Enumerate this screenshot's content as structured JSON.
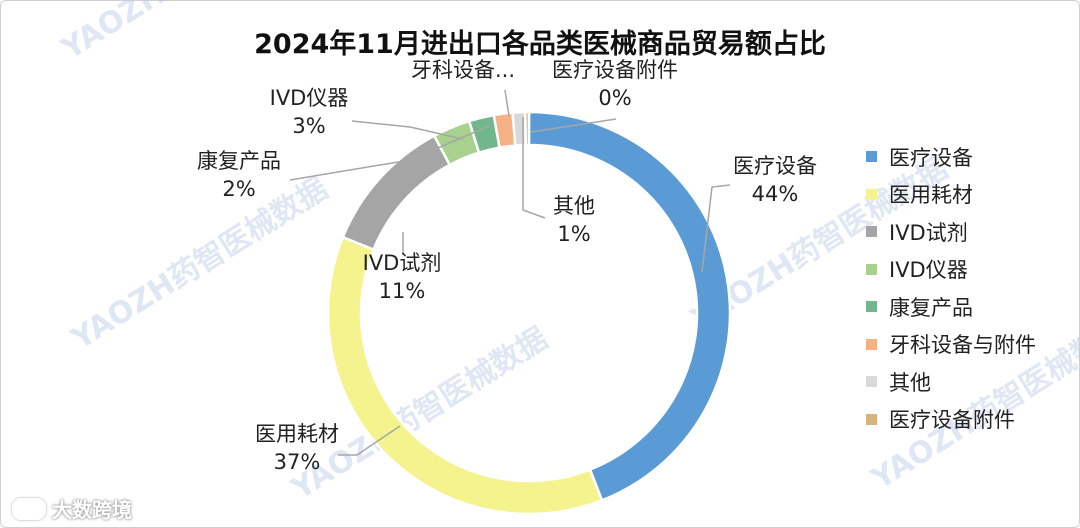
{
  "chart_data": {
    "type": "pie",
    "donut": true,
    "title": "2024年11月进出口各品类医械商品贸易额占比",
    "slices": [
      {
        "name": "医疗设备",
        "value": 44,
        "label": "医疗设备",
        "pct_label": "44%",
        "color": "#5b9bd5"
      },
      {
        "name": "医用耗材",
        "value": 37,
        "label": "医用耗材",
        "pct_label": "37%",
        "color": "#f4f38e"
      },
      {
        "name": "IVD试剂",
        "value": 11,
        "label": "IVD试剂",
        "pct_label": "11%",
        "color": "#a5a5a5"
      },
      {
        "name": "IVD仪器",
        "value": 3,
        "label": "IVD仪器",
        "pct_label": "3%",
        "color": "#a9d18e"
      },
      {
        "name": "康复产品",
        "value": 2,
        "label": "康复产品",
        "pct_label": "2%",
        "color": "#70b88b"
      },
      {
        "name": "牙科设备与附件",
        "value": 1.5,
        "label": "牙科设备...",
        "pct_label": "",
        "color": "#f4b183"
      },
      {
        "name": "其他",
        "value": 1,
        "label": "其他",
        "pct_label": "1%",
        "color": "#d9d9d9"
      },
      {
        "name": "医疗设备附件",
        "value": 0.3,
        "label": "医疗设备附件",
        "pct_label": "0%",
        "color": "#d6b47d"
      }
    ],
    "legend_position": "right"
  },
  "watermark": {
    "text": "YAOZH药智医械数据"
  },
  "footer": {
    "brand": "大数跨境"
  }
}
